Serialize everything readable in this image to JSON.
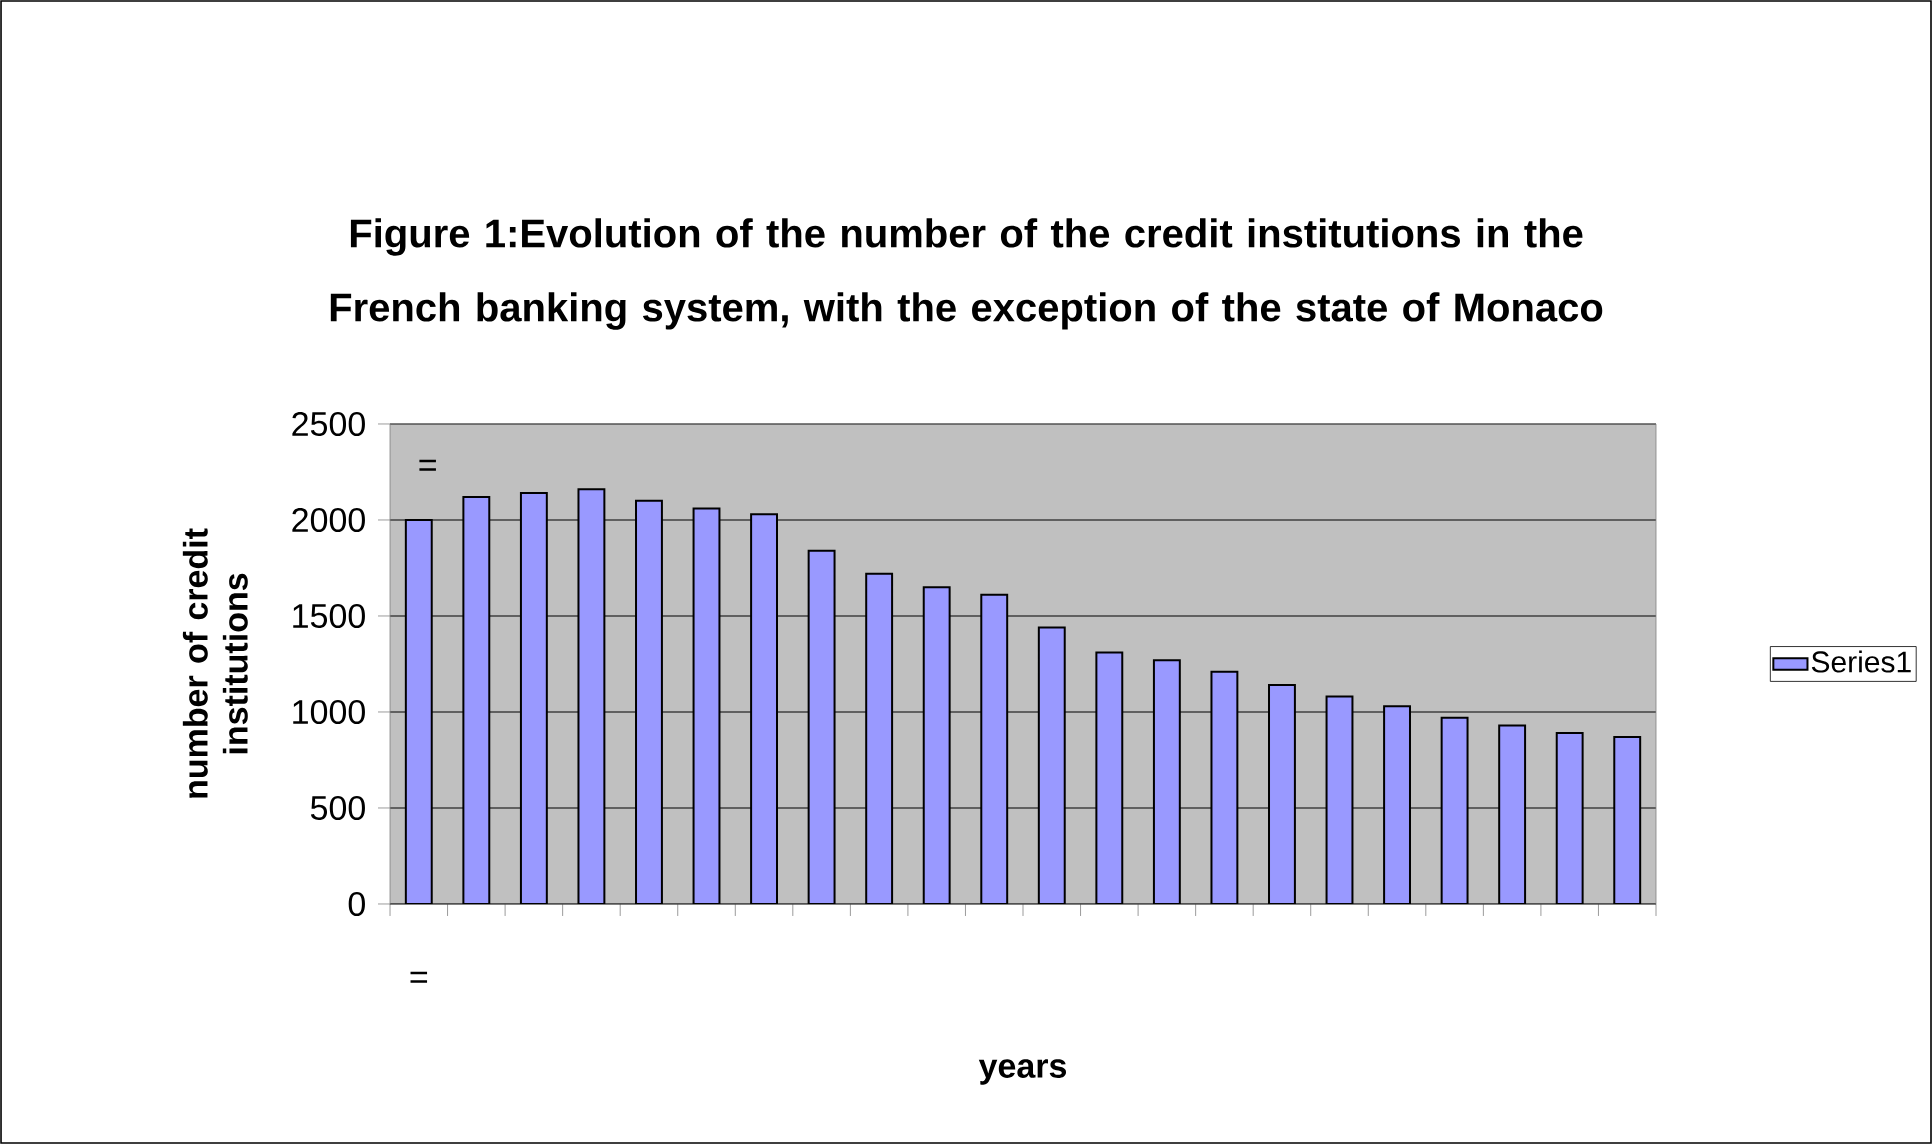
{
  "chart_data": {
    "type": "bar",
    "title": "Figure 1:Evolution of the number of the credit institutions in the French banking system, with the exception of the state of Monaco",
    "xlabel": "years",
    "ylabel": "number of credit institutions",
    "categories": [
      "=",
      null,
      null,
      null,
      null,
      null,
      null,
      null,
      null,
      null,
      null,
      null,
      null,
      null,
      null,
      null,
      null,
      null,
      null,
      null,
      null,
      null
    ],
    "series": [
      {
        "name": "Series1",
        "color": "#9999ff",
        "values": [
          2000,
          2120,
          2140,
          2160,
          2100,
          2060,
          2030,
          1840,
          1720,
          1650,
          1610,
          1440,
          1310,
          1270,
          1210,
          1140,
          1080,
          1030,
          970,
          930,
          890,
          870
        ]
      }
    ],
    "annotations": [
      "="
    ],
    "ylim": [
      0,
      2500
    ],
    "yticks": [
      0,
      500,
      1000,
      1500,
      2000,
      2500
    ],
    "grid": "y",
    "legend": "right"
  }
}
